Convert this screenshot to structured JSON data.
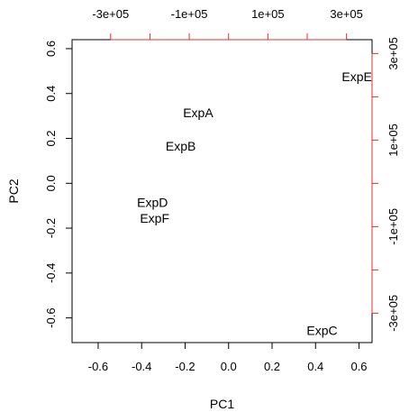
{
  "chart_data": {
    "type": "scatter",
    "title": "",
    "xlabel": "PC1",
    "ylabel": "PC2",
    "xlim": [
      -0.72,
      0.66
    ],
    "ylim": [
      -0.71,
      0.64
    ],
    "top_xlim": [
      -398000.0,
      365000.0
    ],
    "right_ylim": [
      -368000.0,
      332000.0
    ],
    "x_ticks": [
      {
        "value": -0.6,
        "label": "-0.6"
      },
      {
        "value": -0.4,
        "label": "-0.4"
      },
      {
        "value": -0.2,
        "label": "-0.2"
      },
      {
        "value": 0.0,
        "label": "0.0"
      },
      {
        "value": 0.2,
        "label": "0.2"
      },
      {
        "value": 0.4,
        "label": "0.4"
      },
      {
        "value": 0.6,
        "label": "0.6"
      }
    ],
    "y_ticks": [
      {
        "value": -0.6,
        "label": "-0.6"
      },
      {
        "value": -0.4,
        "label": "-0.4"
      },
      {
        "value": -0.2,
        "label": "-0.2"
      },
      {
        "value": 0.0,
        "label": "0.0"
      },
      {
        "value": 0.2,
        "label": "0.2"
      },
      {
        "value": 0.4,
        "label": "0.4"
      },
      {
        "value": 0.6,
        "label": "0.6"
      }
    ],
    "top_ticks": [
      {
        "value": -300000,
        "label": "-3e+05"
      },
      {
        "value": -200000,
        "label": ""
      },
      {
        "value": -100000,
        "label": "-1e+05"
      },
      {
        "value": 0,
        "label": ""
      },
      {
        "value": 100000,
        "label": "1e+05"
      },
      {
        "value": 200000,
        "label": ""
      },
      {
        "value": 300000,
        "label": "3e+05"
      }
    ],
    "right_ticks": [
      {
        "value": -300000,
        "label": "-3e+05"
      },
      {
        "value": -200000,
        "label": ""
      },
      {
        "value": -100000,
        "label": "-1e+05"
      },
      {
        "value": 0,
        "label": ""
      },
      {
        "value": 100000,
        "label": "1e+05"
      },
      {
        "value": 200000,
        "label": ""
      },
      {
        "value": 300000,
        "label": "3e+05"
      }
    ],
    "points": [
      {
        "label": "ExpA",
        "x": -0.14,
        "y": 0.31
      },
      {
        "label": "ExpB",
        "x": -0.22,
        "y": 0.16
      },
      {
        "label": "ExpD",
        "x": -0.35,
        "y": -0.09
      },
      {
        "label": "ExpF",
        "x": -0.34,
        "y": -0.16
      },
      {
        "label": "ExpE",
        "x": 0.59,
        "y": 0.47
      },
      {
        "label": "ExpC",
        "x": 0.43,
        "y": -0.66
      }
    ],
    "colors": {
      "axis": "#000000",
      "secondary_axis": "#e0302a",
      "text": "#000000"
    },
    "grid": false
  }
}
